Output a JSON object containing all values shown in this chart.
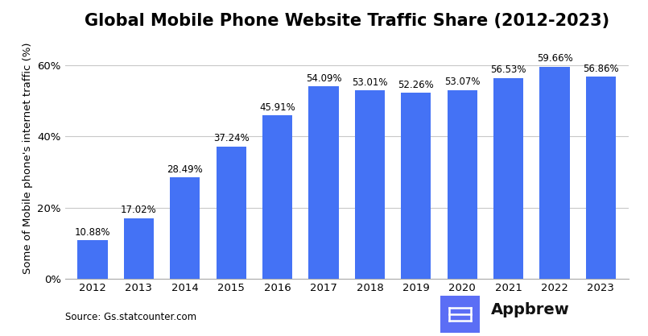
{
  "title": "Global Mobile Phone Website Traffic Share (2012-2023)",
  "ylabel": "Some of Mobile phone's internet traffic (%)",
  "source_text": "Source: Gs.statcounter.com",
  "categories": [
    "2012",
    "2013",
    "2014",
    "2015",
    "2016",
    "2017",
    "2018",
    "2019",
    "2020",
    "2021",
    "2022",
    "2023"
  ],
  "values": [
    10.88,
    17.02,
    28.49,
    37.24,
    45.91,
    54.09,
    53.01,
    52.26,
    53.07,
    56.53,
    59.66,
    56.86
  ],
  "bar_color": "#4472F5",
  "bar_width": 0.65,
  "ylim": [
    0,
    68
  ],
  "yticks": [
    0,
    20,
    40,
    60
  ],
  "ytick_labels": [
    "0%",
    "20%",
    "40%",
    "60%"
  ],
  "title_fontsize": 15,
  "label_fontsize": 8.5,
  "ylabel_fontsize": 9.5,
  "tick_fontsize": 9.5,
  "source_fontsize": 8.5,
  "appbrew_fontsize": 14,
  "background_color": "#ffffff",
  "grid_color": "#c8c8c8",
  "value_labels": [
    "10.88%",
    "17.02%",
    "28.49%",
    "37.24%",
    "45.91%",
    "54.09%",
    "53.01%",
    "52.26%",
    "53.07%",
    "56.53%",
    "59.66%",
    "56.86%"
  ],
  "appbrew_icon_color": "#5B6EF5",
  "appbrew_text_color": "#111111"
}
